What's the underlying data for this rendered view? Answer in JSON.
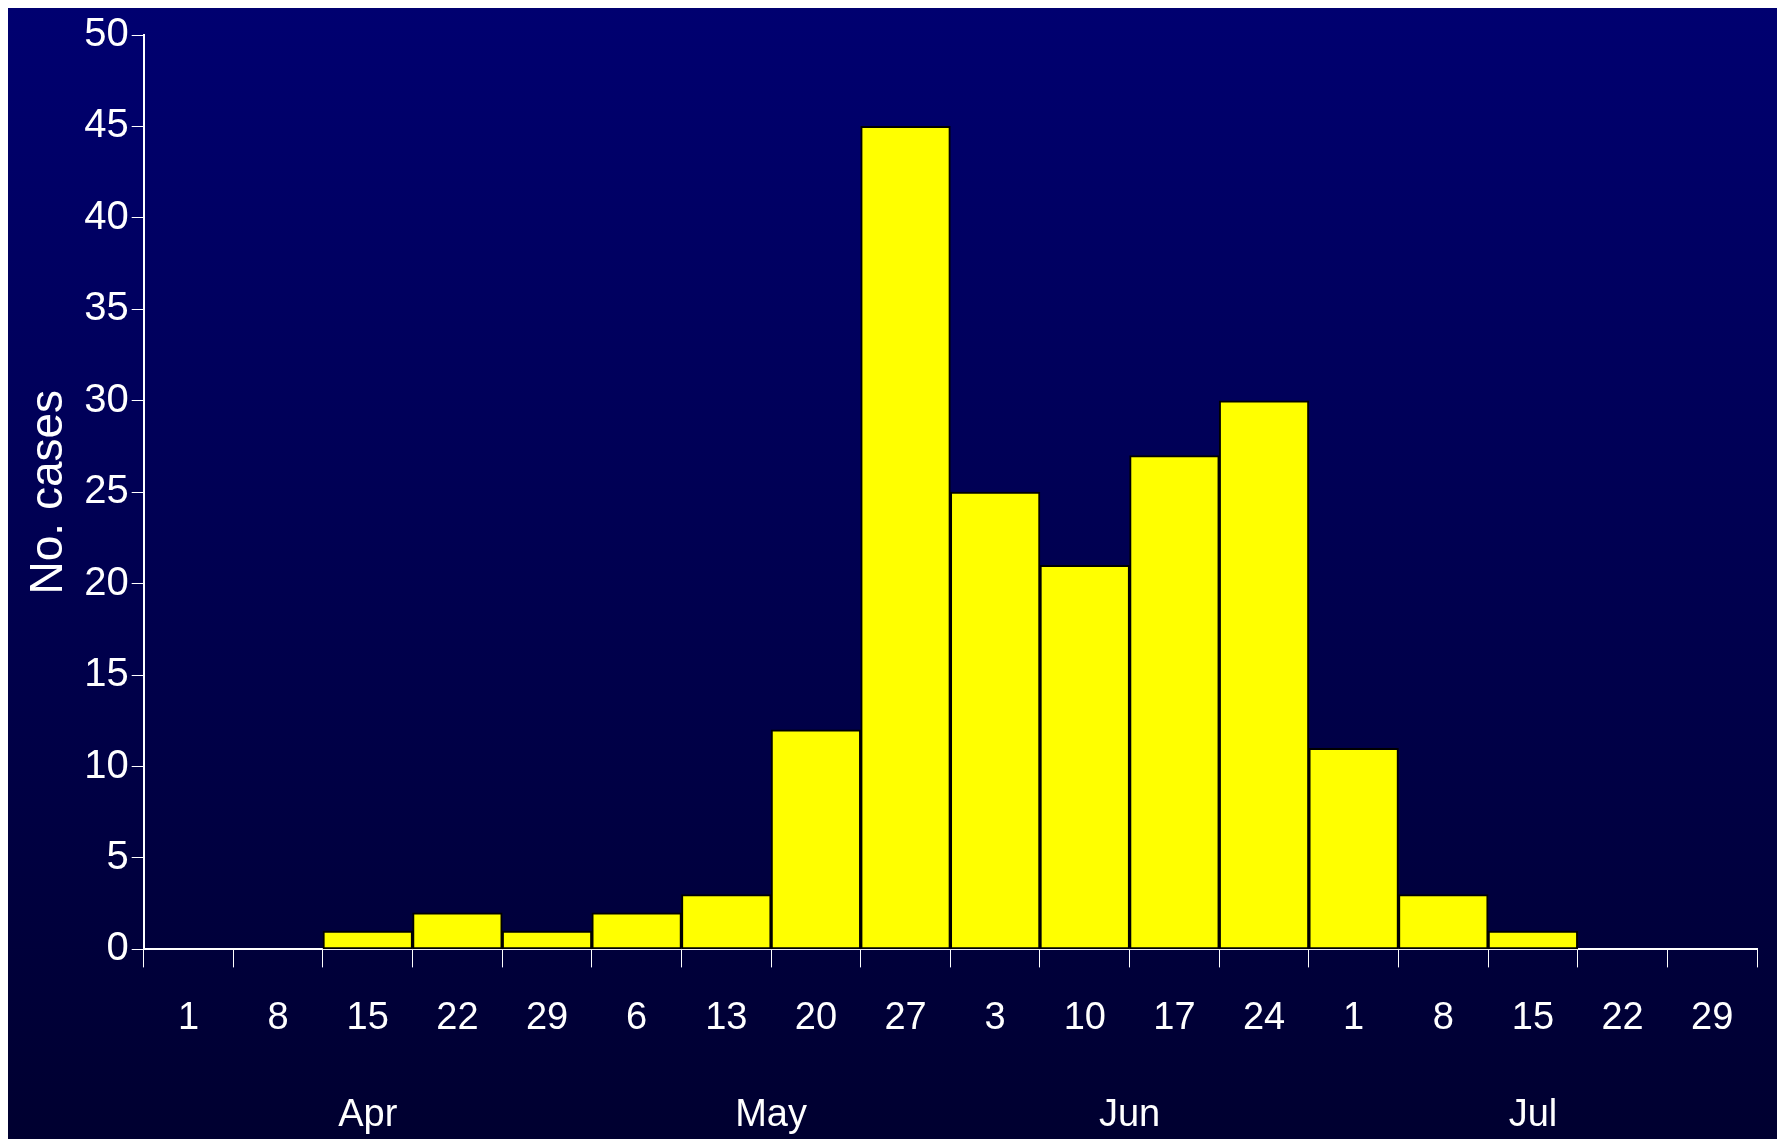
{
  "chart_data": {
    "type": "bar",
    "ylabel": "No. cases",
    "categories": [
      "1",
      "8",
      "15",
      "22",
      "29",
      "6",
      "13",
      "20",
      "27",
      "3",
      "10",
      "17",
      "24",
      "1",
      "8",
      "15",
      "22",
      "29"
    ],
    "values": [
      0,
      0,
      1,
      2,
      1,
      2,
      3,
      12,
      45,
      25,
      21,
      27,
      30,
      11,
      3,
      1,
      0,
      0
    ],
    "color": "#ffff00",
    "ylim": [
      0,
      50
    ],
    "yticks": [
      0,
      5,
      10,
      15,
      20,
      25,
      30,
      35,
      40,
      45,
      50
    ],
    "grid": false,
    "legend": false,
    "annotations": [
      "Apr",
      "May",
      "Jun",
      "Jul"
    ]
  }
}
